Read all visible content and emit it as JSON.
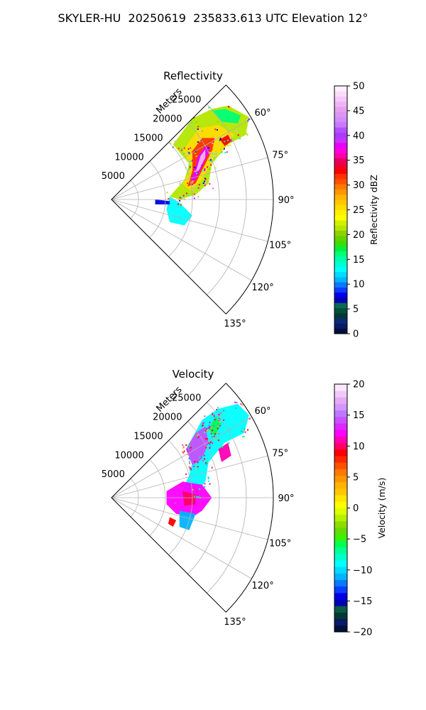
{
  "page_title": "SKYLER-HU  20250619  235833.613 UTC Elevation 12°",
  "chart_data": [
    {
      "type": "polar-sector",
      "title": "Reflectivity",
      "radial_axis_label": "Meters",
      "radial_ticks": [
        "5000",
        "10000",
        "15000",
        "20000",
        "25000"
      ],
      "radial_range": [
        0,
        30000
      ],
      "angle_ticks": [
        "60°",
        "75°",
        "90°",
        "105°",
        "120°",
        "135°"
      ],
      "angle_range_deg": [
        45,
        135
      ],
      "grid": true,
      "colorbar": {
        "label": "Reflectivity dBZ",
        "ticks": [
          "0",
          "5",
          "10",
          "15",
          "20",
          "25",
          "30",
          "35",
          "40",
          "45",
          "50"
        ],
        "range": [
          0,
          50
        ],
        "colors": [
          "#00103a",
          "#0a1a66",
          "#0a2a77",
          "#003a33",
          "#00503c",
          "#0a6b55",
          "#0000b4",
          "#0000e6",
          "#0a3cff",
          "#0a78ff",
          "#00b4ff",
          "#00dcff",
          "#00ffff",
          "#00ffd2",
          "#00ffaa",
          "#00ff78",
          "#00f03c",
          "#3cdc00",
          "#64d200",
          "#8cd200",
          "#b4e600",
          "#d2f000",
          "#ffff00",
          "#fff000",
          "#ffdc00",
          "#ffc800",
          "#ffb400",
          "#ff9600",
          "#ff7800",
          "#ff5000",
          "#ff3200",
          "#ff0000",
          "#f00032",
          "#e6005a",
          "#ff00aa",
          "#ff00dc",
          "#e600ff",
          "#c832ff",
          "#aa3cff",
          "#b450ff",
          "#c878ff",
          "#d28cff",
          "#dc96f0",
          "#e6a0f0",
          "#f0b4f5",
          "#f5c8fa",
          "#fadcfa",
          "#fff0ff"
        ]
      }
    },
    {
      "type": "polar-sector",
      "title": "Velocity",
      "radial_axis_label": "Meters",
      "radial_ticks": [
        "5000",
        "10000",
        "15000",
        "20000",
        "25000"
      ],
      "radial_range": [
        0,
        30000
      ],
      "angle_ticks": [
        "60°",
        "75°",
        "90°",
        "105°",
        "120°",
        "135°"
      ],
      "angle_range_deg": [
        45,
        135
      ],
      "grid": true,
      "colorbar": {
        "label": "Velocity (m/s)",
        "ticks": [
          "−20",
          "−15",
          "−10",
          "−5",
          "0",
          "5",
          "10",
          "15",
          "20"
        ],
        "range": [
          -20,
          20
        ],
        "colors": [
          "#00103a",
          "#0a1a66",
          "#003a33",
          "#0a5a44",
          "#0000b4",
          "#0000e6",
          "#0a3cff",
          "#0a78ff",
          "#00b4ff",
          "#00dcff",
          "#00ffff",
          "#00ffc8",
          "#00ff96",
          "#00ff50",
          "#3cf000",
          "#64dc00",
          "#8cdc00",
          "#b4f000",
          "#dcff00",
          "#ffff00",
          "#ffe600",
          "#ffc800",
          "#ffb400",
          "#ff9600",
          "#ff7800",
          "#ff5000",
          "#ff2800",
          "#ff0000",
          "#ff0064",
          "#ff00b4",
          "#ff00ff",
          "#dc28ff",
          "#c850ff",
          "#be78ff",
          "#d296ff",
          "#e6aaf5",
          "#f0c8fa",
          "#fae6fa"
        ]
      }
    }
  ]
}
